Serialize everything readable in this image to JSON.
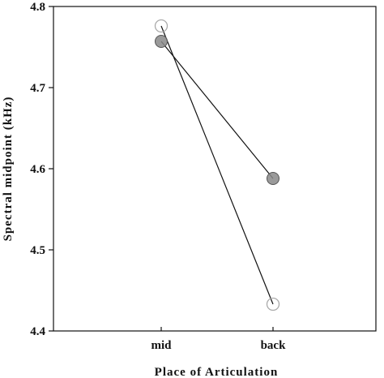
{
  "chart_data": {
    "type": "line",
    "title": "",
    "xlabel": "Place of Articulation",
    "ylabel": "Spectral midpoint (kHz)",
    "categories": [
      "mid",
      "back"
    ],
    "ylim": [
      4.4,
      4.8
    ],
    "yticks": [
      "4.4",
      "4.5",
      "4.6",
      "4.7",
      "4.8"
    ],
    "grid": false,
    "legend": "none",
    "series": [
      {
        "values": [
          4.757,
          4.588
        ],
        "marker": "filled-circle",
        "color": "#888888"
      },
      {
        "values": [
          4.776,
          4.433
        ],
        "marker": "open-circle",
        "color": "#aaaaaa"
      }
    ]
  }
}
